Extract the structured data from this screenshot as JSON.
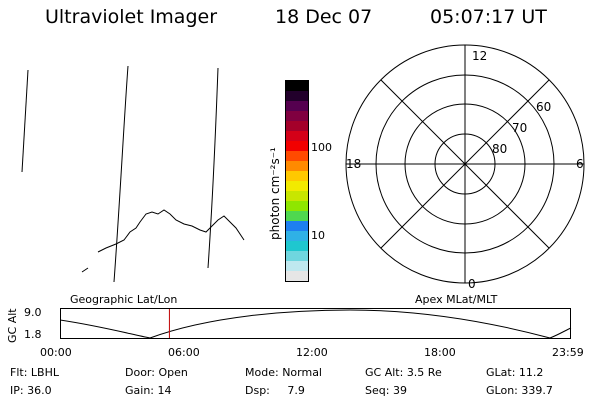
{
  "header": {
    "instrument": "Ultraviolet Imager",
    "date": "18 Dec 07",
    "time": "05:07:17 UT"
  },
  "colorbar": {
    "unit_label": "photon cm⁻²s⁻¹",
    "tick_labels": [
      "100",
      "10"
    ],
    "colors": [
      "#e6e6e6",
      "#bfe8ef",
      "#6fd6df",
      "#1fc7cf",
      "#2fb1e6",
      "#1e7ff0",
      "#4fd84f",
      "#8fe600",
      "#c8e600",
      "#f2ea00",
      "#ffc800",
      "#ff8a00",
      "#ff4a00",
      "#f20000",
      "#d40018",
      "#a4002a",
      "#800040",
      "#55004f",
      "#22002b",
      "#000000"
    ]
  },
  "polar": {
    "mlt_labels": {
      "top": "12",
      "left": "18",
      "right": "6",
      "bottom": "0"
    },
    "lat_labels": [
      "60",
      "70",
      "80"
    ]
  },
  "ephemeris": {
    "left_title": "Geographic Lat/Lon",
    "right_title": "Apex MLat/MLT",
    "y_axis_label": "GC Alt",
    "y_ticks": [
      "9.0",
      "1.8"
    ],
    "x_ticks": [
      "00:00",
      "06:00",
      "12:00",
      "18:00",
      "23:59"
    ],
    "current_time_fraction": 0.213
  },
  "status": {
    "row1": [
      {
        "label": "Flt:",
        "value": "LBHL"
      },
      {
        "label": "Door:",
        "value": "Open"
      },
      {
        "label": "Mode:",
        "value": "Normal"
      },
      {
        "label": "GC Alt:",
        "value": "3.5 Re"
      },
      {
        "label": "GLat:",
        "value": "11.2"
      }
    ],
    "row2": [
      {
        "label": "IP:",
        "value": "36.0"
      },
      {
        "label": "Gain:",
        "value": "14"
      },
      {
        "label": "Dsp:",
        "value": "7.9"
      },
      {
        "label": "Seq:",
        "value": "39"
      },
      {
        "label": "GLon:",
        "value": "339.7"
      }
    ]
  }
}
